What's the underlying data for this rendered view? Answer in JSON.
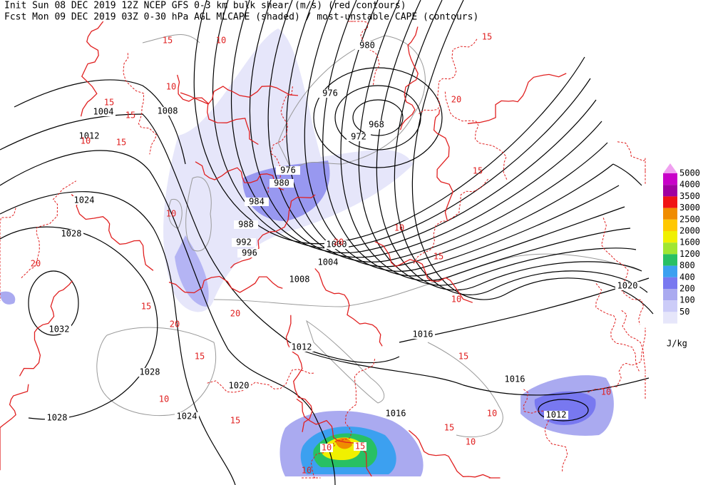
{
  "header": {
    "line1": "Init  Sun 08 DEC 2019 12Z  NCEP GFS 0-3 km bulk shear (m/s) (red contours)",
    "line2": "Fcst Mon 09 DEC 2019 03Z  0-30 hPa AGL MLCAPE (shaded) / most-unstable CAPE (contours)"
  },
  "isobar_labels": [
    1004,
    1008,
    1012,
    1024,
    1028,
    1032,
    1028,
    1028,
    1024,
    1020,
    1012,
    1016,
    1016,
    1016,
    1012,
    1020,
    1008,
    1004,
    1000,
    996,
    992,
    988,
    984,
    980,
    976,
    972,
    968,
    976,
    980
  ],
  "shear_labels": [
    15,
    10,
    15,
    10,
    15,
    15,
    10,
    15,
    10,
    20,
    15,
    20,
    15,
    20,
    10,
    15,
    20,
    10,
    15,
    10,
    15,
    10,
    10,
    15,
    20,
    10,
    15,
    10
  ],
  "cape_labels": [
    10,
    15
  ],
  "legend": {
    "unit": "J/kg",
    "levels": [
      {
        "value": 5000,
        "color": "#f0a0f0"
      },
      {
        "value": 4000,
        "color": "#c800c8"
      },
      {
        "value": 3500,
        "color": "#a000a0"
      },
      {
        "value": 3000,
        "color": "#f01414"
      },
      {
        "value": 2500,
        "color": "#f08c00"
      },
      {
        "value": 2000,
        "color": "#ffc800"
      },
      {
        "value": 1600,
        "color": "#f0f000"
      },
      {
        "value": 1200,
        "color": "#a0e632"
      },
      {
        "value": 800,
        "color": "#28c064"
      },
      {
        "value": 400,
        "color": "#3ca0f0"
      },
      {
        "value": 200,
        "color": "#7878f0"
      },
      {
        "value": 100,
        "color": "#aaaaf0"
      },
      {
        "value": 50,
        "color": "#ccccf8"
      }
    ]
  }
}
